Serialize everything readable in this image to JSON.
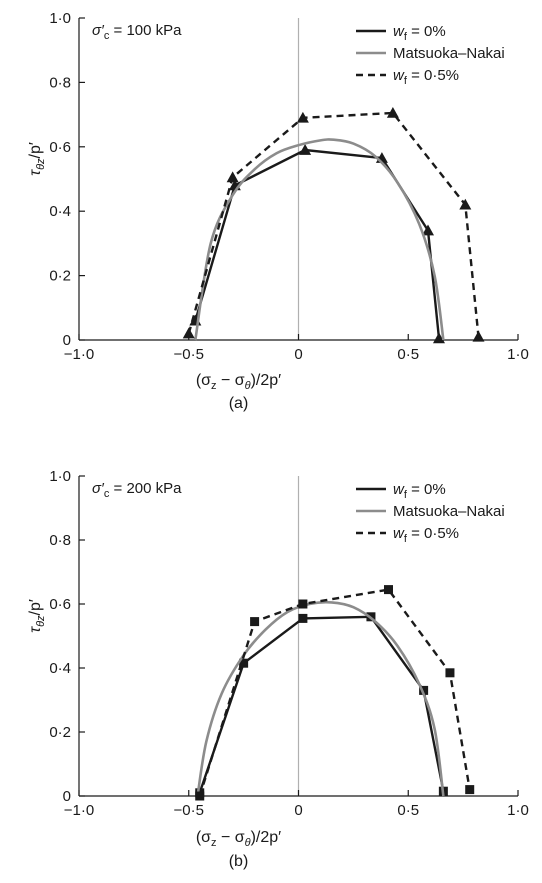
{
  "colors": {
    "wf0": "#1a1a1a",
    "mn": "#8c8c8c",
    "wf05": "#1a1a1a",
    "zero_line": "#b0b0b0"
  },
  "x_tick_labels": [
    "−1·0",
    "−0·5",
    "0",
    "0·5",
    "1·0"
  ],
  "y_tick_labels": [
    "0",
    "0·2",
    "0·4",
    "0·6",
    "0·8",
    "1·0"
  ],
  "chart_data": [
    {
      "type": "line",
      "panel_label": "(a)",
      "annotation": {
        "prefix": "σ′",
        "sub": "c",
        "value": "= 100 kPa"
      },
      "xlabel": {
        "p1": "(σ",
        "s1": "z",
        "p2": " − σ",
        "s2": "θ",
        "p3": ")/2p′"
      },
      "ylabel": {
        "p1": "τ",
        "s1": "θz",
        "p2": "/p′"
      },
      "xlim": [
        -1.0,
        1.0
      ],
      "ylim": [
        0,
        1.0
      ],
      "grid": false,
      "legend_position": "top-right",
      "marker": "triangle",
      "legend": [
        {
          "text": "w",
          "sub": "f",
          "rest": " = 0%"
        },
        {
          "text": "Matsuoka–Nakai"
        },
        {
          "text": "w",
          "sub": "f",
          "rest": " = 0·5%"
        }
      ],
      "series": [
        {
          "legend_index": 0,
          "style": "solid",
          "x": [
            -0.47,
            -0.29,
            0.03,
            0.38,
            0.59,
            0.64
          ],
          "y": [
            0.06,
            0.48,
            0.59,
            0.565,
            0.34,
            0.005
          ]
        },
        {
          "legend_index": 1,
          "style": "curve",
          "x": [
            -0.47,
            -0.4,
            -0.3,
            -0.2,
            -0.1,
            0.0,
            0.1,
            0.16,
            0.25,
            0.35,
            0.45,
            0.55,
            0.62,
            0.66
          ],
          "y": [
            0.0,
            0.3,
            0.45,
            0.53,
            0.58,
            0.605,
            0.62,
            0.622,
            0.61,
            0.57,
            0.49,
            0.36,
            0.2,
            0.0
          ]
        },
        {
          "legend_index": 2,
          "style": "dashed",
          "x": [
            -0.5,
            -0.3,
            0.02,
            0.43,
            0.76,
            0.82
          ],
          "y": [
            0.02,
            0.505,
            0.69,
            0.705,
            0.42,
            0.01
          ]
        }
      ]
    },
    {
      "type": "line",
      "panel_label": "(b)",
      "annotation": {
        "prefix": "σ′",
        "sub": "c",
        "value": "= 200 kPa"
      },
      "xlabel": {
        "p1": "(σ",
        "s1": "z",
        "p2": " − σ",
        "s2": "θ",
        "p3": ")/2p′"
      },
      "ylabel": {
        "p1": "τ",
        "s1": "θz",
        "p2": "/p′"
      },
      "xlim": [
        -1.0,
        1.0
      ],
      "ylim": [
        0,
        1.0
      ],
      "grid": false,
      "legend_position": "top-right",
      "marker": "square",
      "legend": [
        {
          "text": "w",
          "sub": "f",
          "rest": " = 0%"
        },
        {
          "text": "Matsuoka–Nakai"
        },
        {
          "text": "w",
          "sub": "f",
          "rest": " = 0·5%"
        }
      ],
      "series": [
        {
          "legend_index": 0,
          "style": "solid",
          "x": [
            -0.45,
            -0.25,
            0.02,
            0.33,
            0.57,
            0.66
          ],
          "y": [
            0.01,
            0.415,
            0.555,
            0.56,
            0.33,
            0.015
          ]
        },
        {
          "legend_index": 1,
          "style": "curve",
          "x": [
            -0.46,
            -0.42,
            -0.35,
            -0.25,
            -0.15,
            -0.05,
            0.05,
            0.15,
            0.25,
            0.35,
            0.45,
            0.55,
            0.62,
            0.66
          ],
          "y": [
            0.0,
            0.17,
            0.32,
            0.44,
            0.52,
            0.575,
            0.6,
            0.605,
            0.59,
            0.545,
            0.47,
            0.35,
            0.21,
            0.0
          ]
        },
        {
          "legend_index": 2,
          "style": "dashed",
          "x": [
            -0.45,
            -0.2,
            0.02,
            0.41,
            0.69,
            0.78
          ],
          "y": [
            0.0,
            0.545,
            0.6,
            0.645,
            0.385,
            0.02
          ]
        }
      ]
    }
  ]
}
